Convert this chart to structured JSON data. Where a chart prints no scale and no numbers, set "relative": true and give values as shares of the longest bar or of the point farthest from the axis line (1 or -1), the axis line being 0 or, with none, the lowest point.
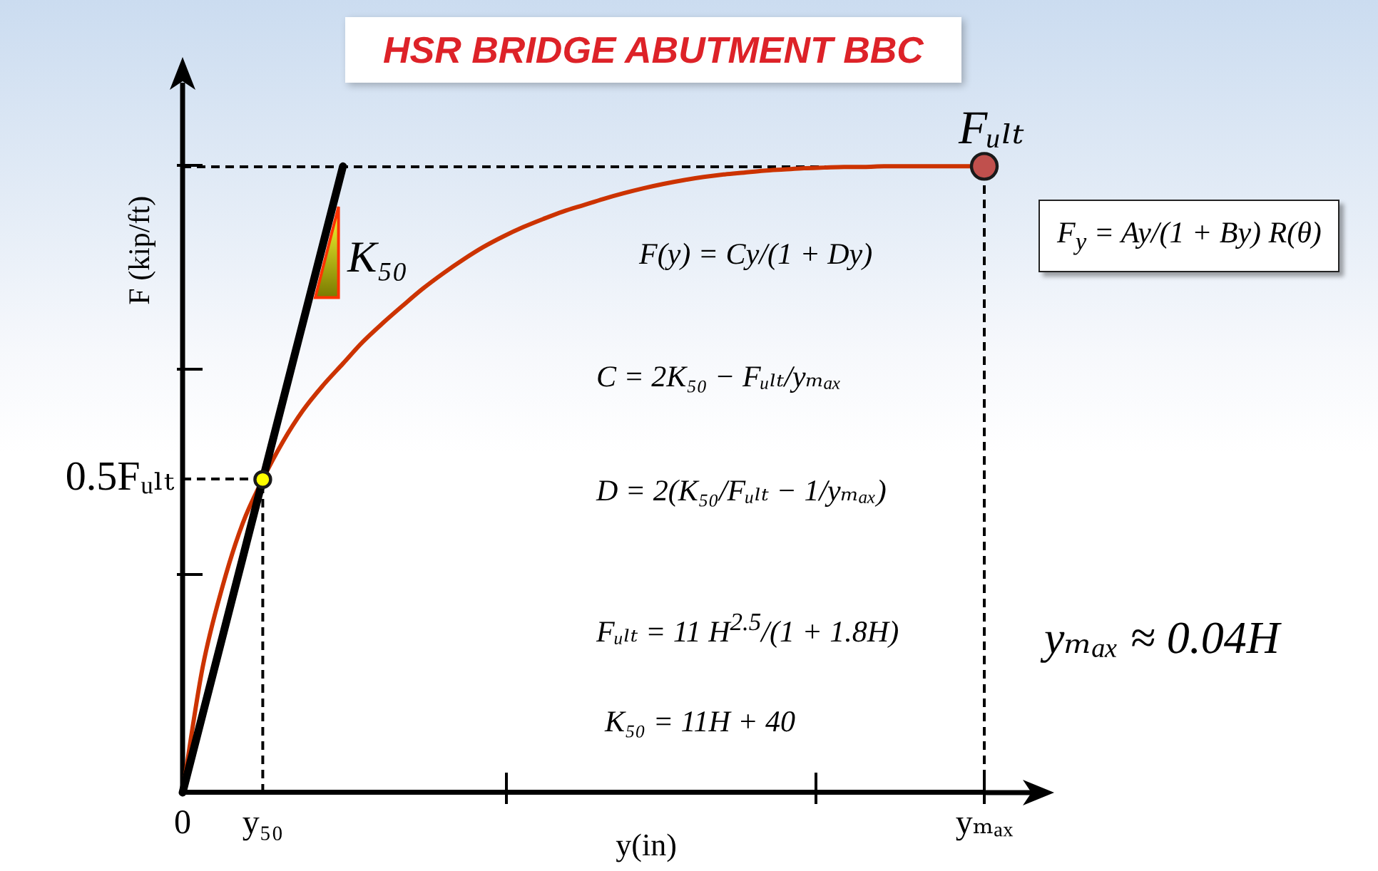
{
  "chart_data": {
    "type": "line",
    "title": "HSR BRIDGE ABUTMENT BBC",
    "xlabel": "y(in)",
    "ylabel": "F (kip/ft)",
    "relative": true,
    "categories": [
      "0",
      null,
      null,
      null,
      "y₅₀",
      null,
      null,
      null,
      null,
      null,
      null,
      null,
      null,
      null,
      null,
      null,
      null,
      null,
      null,
      null,
      null,
      null,
      null,
      null,
      null,
      null,
      null,
      null,
      null,
      null,
      null,
      null,
      null,
      null,
      null,
      null,
      null,
      null,
      null,
      null,
      "yₘₐₓ"
    ],
    "series": [
      {
        "color": "#cc3300",
        "values": [
          0,
          0.2,
          0.33,
          0.43,
          0.5,
          0.56,
          0.61,
          0.65,
          0.685,
          0.72,
          0.75,
          0.778,
          0.805,
          0.829,
          0.851,
          0.871,
          0.888,
          0.903,
          0.916,
          0.928,
          0.938,
          0.948,
          0.957,
          0.965,
          0.972,
          0.978,
          0.983,
          0.987,
          0.99,
          0.993,
          0.995,
          0.997,
          0.998,
          0.999,
          0.999,
          1,
          1,
          1,
          1,
          1,
          1
        ]
      },
      {
        "name": "K₅₀",
        "color": "#000000",
        "values": [
          0,
          0.125,
          0.25,
          0.375,
          0.5,
          0.625,
          0.75,
          0.875,
          1,
          null,
          null,
          null,
          null,
          null,
          null,
          null,
          null,
          null,
          null,
          null,
          null,
          null,
          null,
          null,
          null,
          null,
          null,
          null,
          null,
          null,
          null,
          null,
          null,
          null,
          null,
          null,
          null,
          null,
          null,
          null,
          null
        ]
      },
      {
        "color": "#000000",
        "line_style": "dashed",
        "x": [
          "y₅₀",
          "y₅₀"
        ],
        "values": [
          0,
          0.5
        ]
      },
      {
        "type": "scatter",
        "marker": "circle",
        "color": "#ffff00",
        "x": [
          "y₅₀"
        ],
        "values": [
          0.5
        ]
      },
      {
        "type": "scatter",
        "marker": "circle",
        "color": "#c0504d",
        "x": [
          "yₘₐₓ"
        ],
        "values": [
          1
        ]
      }
    ],
    "ref_lines": [
      {
        "axis": "y",
        "value": 0.5,
        "label": "0.5Fᵤₗₜ",
        "color": "#000000",
        "line_style": "dashed"
      },
      {
        "axis": "y",
        "value": 1,
        "color": "#000000",
        "line_style": "dashed"
      },
      {
        "axis": "x",
        "value": "yₘₐₓ",
        "color": "#000000",
        "line_style": "dashed"
      }
    ],
    "annotations": [
      {
        "text": "Fᵤₗₜ",
        "x": "yₘₐₓ",
        "y": 1
      },
      "F(y) = Cy/(1 + Dy)",
      "C = 2K₅₀ − Fᵤₗₜ/yₘₐₓ",
      "D = 2(K₅₀/Fᵤₗₜ − 1/yₘₐₓ)",
      "Fᵤₗₜ = 11 H$^{2.5}$/(1 + 1.8H)",
      "K₅₀ = 11H + 40",
      "F$_{y}$ = Ay/(1 + By) R(θ)",
      "yₘₐₓ ≈ 0.04H"
    ]
  }
}
